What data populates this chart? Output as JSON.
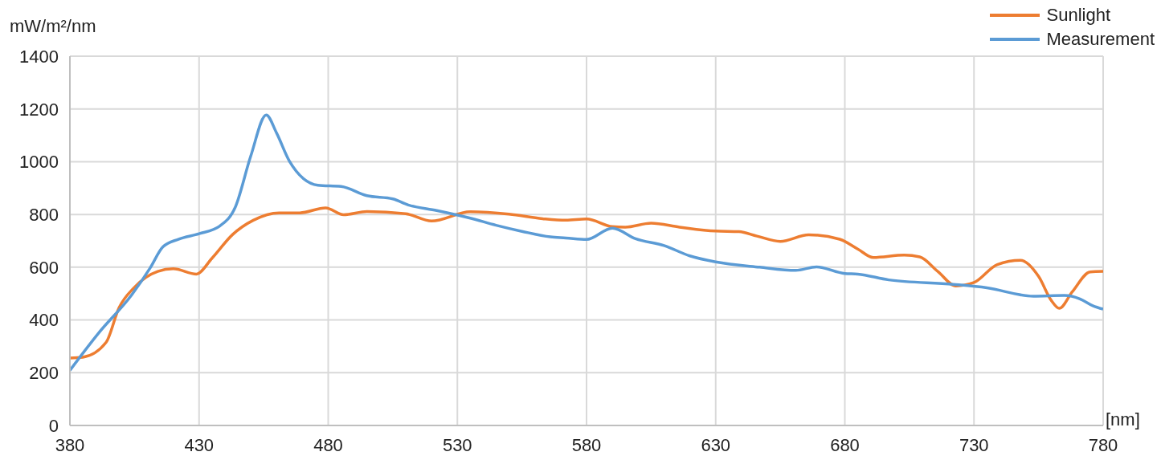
{
  "chart_data": {
    "type": "line",
    "ylabel": "mW/m²/nm",
    "xlabel": "[nm]",
    "xlim": [
      380,
      780
    ],
    "xticks": [
      380,
      430,
      480,
      530,
      580,
      630,
      680,
      730,
      780
    ],
    "ylim": [
      0,
      1400
    ],
    "yticks": [
      0,
      200,
      400,
      600,
      800,
      1000,
      1200,
      1400
    ],
    "grid": true,
    "legend": "top right",
    "marker": "none",
    "line_style": "solid",
    "series": [
      {
        "name": "Sunlight",
        "color": "#ed7d31",
        "x": [
          380,
          385,
          394,
          399,
          405,
          414,
          420,
          429,
          435,
          443,
          451,
          461,
          469,
          479,
          486,
          495,
          510,
          520,
          535,
          550,
          563,
          572,
          580,
          590,
          595,
          605,
          616,
          630,
          639,
          646,
          655,
          666,
          678,
          685,
          691,
          703,
          709,
          716,
          723,
          730,
          739,
          748,
          755,
          760,
          763,
          768,
          775,
          780
        ],
        "values": [
          256,
          259,
          315,
          446,
          524,
          584,
          594,
          574,
          634,
          724,
          778,
          806,
          806,
          825,
          799,
          811,
          803,
          775,
          810,
          801,
          784,
          778,
          783,
          754,
          752,
          767,
          752,
          737,
          735,
          718,
          698,
          723,
          706,
          669,
          637,
          646,
          639,
          584,
          529,
          542,
          610,
          626,
          565,
          473,
          444,
          506,
          582,
          584
        ]
      },
      {
        "name": "Measurement",
        "color": "#5b9bd5",
        "x": [
          380,
          391,
          404,
          411,
          416,
          422,
          430,
          438,
          444,
          450,
          456,
          460,
          465,
          476,
          485,
          495,
          505,
          511,
          522,
          535,
          545,
          555,
          566,
          572,
          580,
          590,
          599,
          610,
          620,
          630,
          647,
          661,
          669,
          680,
          685,
          697,
          722,
          735,
          753,
          765,
          771,
          776,
          780
        ],
        "values": [
          209,
          349,
          496,
          596,
          677,
          706,
          727,
          756,
          827,
          1021,
          1177,
          1109,
          1002,
          911,
          906,
          871,
          859,
          836,
          815,
          786,
          759,
          736,
          715,
          711,
          705,
          748,
          708,
          682,
          643,
          620,
          600,
          588,
          601,
          576,
          574,
          552,
          535,
          522,
          490,
          493,
          480,
          454,
          441
        ]
      }
    ]
  }
}
